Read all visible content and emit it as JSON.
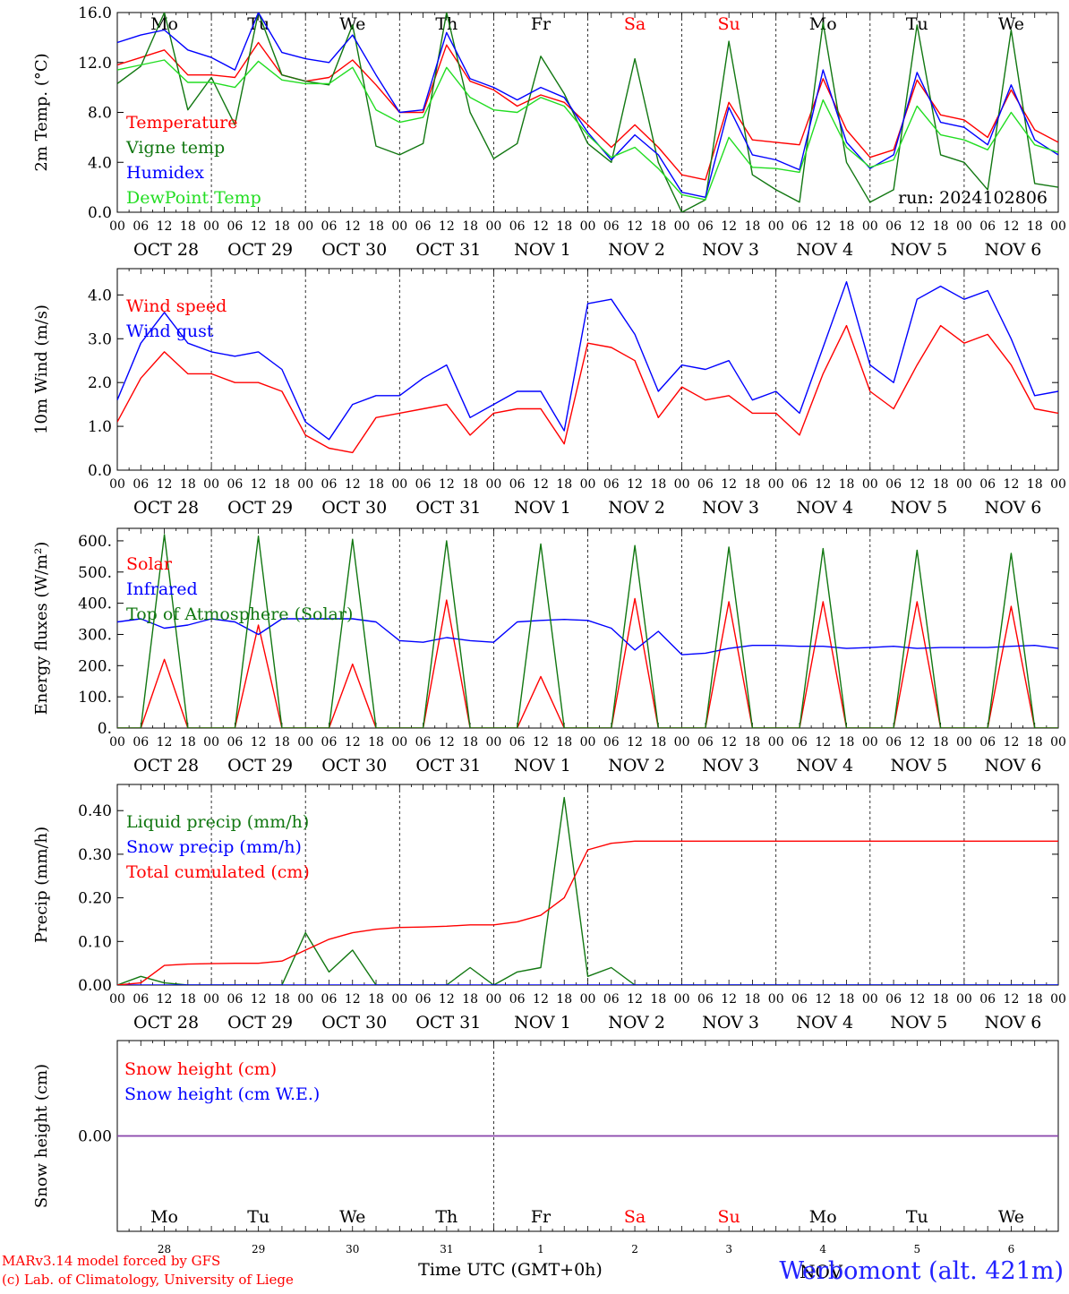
{
  "x_axis": {
    "hour_ticks": [
      "00",
      "06",
      "12",
      "18"
    ],
    "date_labels": [
      "OCT 28",
      "OCT 29",
      "OCT 30",
      "OCT 31",
      "NOV  1",
      "NOV  2",
      "NOV  3",
      "NOV  4",
      "NOV  5",
      "NOV  6"
    ],
    "weekdays": [
      "Mo",
      "Tu",
      "We",
      "Th",
      "Fr",
      "Sa",
      "Su",
      "Mo",
      "Tu",
      "We"
    ],
    "day_numbers": [
      "28",
      "29",
      "30",
      "31",
      "1",
      "2",
      "3",
      "4",
      "5",
      "6"
    ],
    "month_label": "NOV",
    "title": "Time UTC (GMT+0h)",
    "range_hours": [
      0,
      240
    ]
  },
  "colors": {
    "weekday": "#000000",
    "weekend": "#ff0000",
    "red": "#ff0000",
    "green": "#117711",
    "blue": "#0000ff",
    "lightgreen": "#22dd22",
    "purple": "#8844aa",
    "station": "#2222ff"
  },
  "footer": {
    "credit_line1": "MARv3.14 model forced by GFS",
    "credit_line2": "(c) Lab. of Climatology, University of Liege",
    "station": "Werbomont (alt. 421m)"
  },
  "chart_data": [
    {
      "type": "line",
      "ylabel": "2m Temp. (°C)",
      "ylim": [
        0,
        16
      ],
      "yticks": [
        "0.0",
        "4.0",
        "8.0",
        "12.0",
        "16.0"
      ],
      "run_label": "run: 2024102806",
      "x": [
        0,
        6,
        12,
        18,
        24,
        30,
        36,
        42,
        48,
        54,
        60,
        66,
        72,
        78,
        84,
        90,
        96,
        102,
        108,
        114,
        120,
        126,
        132,
        138,
        144,
        150,
        156,
        162,
        168,
        174,
        180,
        186,
        192,
        198,
        204,
        210,
        216,
        222,
        228,
        234,
        240
      ],
      "series": [
        {
          "name": "Temperature",
          "color": "red",
          "values": [
            11.8,
            12.4,
            13.0,
            11.0,
            11.0,
            10.8,
            13.6,
            11.0,
            10.5,
            10.8,
            12.2,
            10.2,
            8.0,
            8.0,
            13.4,
            10.5,
            9.8,
            8.5,
            9.4,
            8.8,
            7.0,
            5.2,
            7.0,
            5.2,
            3.0,
            2.6,
            8.8,
            5.8,
            5.6,
            5.4,
            10.7,
            6.6,
            4.4,
            5.0,
            10.6,
            7.8,
            7.4,
            6.0,
            9.8,
            6.6,
            5.6
          ]
        },
        {
          "name": "Vigne temp",
          "color": "green",
          "values": [
            10.3,
            11.7,
            16.0,
            8.2,
            10.8,
            7.0,
            16.0,
            11.0,
            10.5,
            10.2,
            15.0,
            5.3,
            4.6,
            5.5,
            16.0,
            8.0,
            4.3,
            5.5,
            12.5,
            9.5,
            5.5,
            4.0,
            12.3,
            4.0,
            0.0,
            1.0,
            13.7,
            3.0,
            1.8,
            0.8,
            15.2,
            4.0,
            0.8,
            1.8,
            15.0,
            4.6,
            4.0,
            1.8,
            14.6,
            2.3,
            2.0
          ]
        },
        {
          "name": "Humidex",
          "color": "blue",
          "values": [
            13.6,
            14.2,
            14.6,
            13.0,
            12.4,
            11.4,
            16.0,
            12.8,
            12.3,
            12.0,
            14.2,
            11.0,
            8.0,
            8.2,
            14.4,
            10.7,
            10.0,
            9.0,
            10.0,
            9.2,
            6.4,
            4.2,
            6.2,
            4.6,
            1.6,
            1.2,
            8.4,
            4.6,
            4.2,
            3.4,
            11.4,
            5.6,
            3.5,
            4.6,
            11.2,
            7.2,
            6.8,
            5.4,
            10.2,
            5.8,
            4.6
          ]
        },
        {
          "name": "DewPoint Temp",
          "color": "lightgreen",
          "values": [
            11.4,
            11.8,
            12.2,
            10.4,
            10.4,
            10.0,
            12.1,
            10.6,
            10.3,
            10.3,
            11.6,
            8.2,
            7.2,
            7.6,
            11.6,
            9.2,
            8.2,
            8.0,
            9.2,
            8.5,
            6.2,
            4.4,
            5.2,
            3.5,
            1.4,
            1.0,
            6.0,
            3.6,
            3.5,
            3.2,
            9.0,
            5.2,
            3.6,
            4.2,
            8.5,
            6.2,
            5.8,
            5.0,
            8.0,
            5.4,
            4.8
          ]
        }
      ]
    },
    {
      "type": "line",
      "ylabel": "10m Wind (m/s)",
      "ylim": [
        0,
        4.6
      ],
      "yticks": [
        "0.0",
        "1.0",
        "2.0",
        "3.0",
        "4.0"
      ],
      "x": [
        0,
        6,
        12,
        18,
        24,
        30,
        36,
        42,
        48,
        54,
        60,
        66,
        72,
        78,
        84,
        90,
        96,
        102,
        108,
        114,
        120,
        126,
        132,
        138,
        144,
        150,
        156,
        162,
        168,
        174,
        180,
        186,
        192,
        198,
        204,
        210,
        216,
        222,
        228,
        234,
        240
      ],
      "series": [
        {
          "name": "Wind speed",
          "color": "red",
          "values": [
            1.1,
            2.1,
            2.7,
            2.2,
            2.2,
            2.0,
            2.0,
            1.8,
            0.8,
            0.5,
            0.4,
            1.2,
            1.3,
            1.4,
            1.5,
            0.8,
            1.3,
            1.4,
            1.4,
            0.6,
            2.9,
            2.8,
            2.5,
            1.2,
            1.9,
            1.6,
            1.7,
            1.3,
            1.3,
            0.8,
            2.2,
            3.3,
            1.8,
            1.4,
            2.4,
            3.3,
            2.9,
            3.1,
            2.4,
            1.4,
            1.3
          ]
        },
        {
          "name": "Wind gust",
          "color": "blue",
          "values": [
            1.6,
            2.9,
            3.6,
            2.9,
            2.7,
            2.6,
            2.7,
            2.3,
            1.1,
            0.7,
            1.5,
            1.7,
            1.7,
            2.1,
            2.4,
            1.2,
            1.5,
            1.8,
            1.8,
            0.9,
            3.8,
            3.9,
            3.1,
            1.8,
            2.4,
            2.3,
            2.5,
            1.6,
            1.8,
            1.3,
            2.8,
            4.3,
            2.4,
            2.0,
            3.9,
            4.2,
            3.9,
            4.1,
            3.0,
            1.7,
            1.8
          ]
        }
      ]
    },
    {
      "type": "line",
      "ylabel": "Energy fluxes (W/m²)",
      "ylim": [
        0,
        640
      ],
      "yticks": [
        "0.",
        "100.",
        "200.",
        "300.",
        "400.",
        "500.",
        "600."
      ],
      "x": [
        0,
        6,
        12,
        18,
        24,
        30,
        36,
        42,
        48,
        54,
        60,
        66,
        72,
        78,
        84,
        90,
        96,
        102,
        108,
        114,
        120,
        126,
        132,
        138,
        144,
        150,
        156,
        162,
        168,
        174,
        180,
        186,
        192,
        198,
        204,
        210,
        216,
        222,
        228,
        234,
        240
      ],
      "series": [
        {
          "name": "Solar",
          "color": "red",
          "values": [
            0,
            0,
            220,
            0,
            0,
            0,
            330,
            0,
            0,
            0,
            205,
            0,
            0,
            0,
            410,
            0,
            0,
            0,
            165,
            0,
            0,
            0,
            415,
            0,
            0,
            0,
            405,
            0,
            0,
            0,
            405,
            0,
            0,
            0,
            405,
            0,
            0,
            0,
            390,
            0,
            0
          ]
        },
        {
          "name": "Infrared",
          "color": "blue",
          "values": [
            340,
            350,
            320,
            330,
            350,
            340,
            300,
            350,
            350,
            350,
            350,
            340,
            280,
            275,
            290,
            280,
            275,
            340,
            345,
            348,
            345,
            320,
            250,
            310,
            235,
            240,
            255,
            265,
            265,
            262,
            262,
            255,
            258,
            262,
            255,
            258,
            258,
            258,
            262,
            265,
            255
          ]
        },
        {
          "name": "Top of Atmosphere (Solar)",
          "color": "green",
          "values": [
            0,
            0,
            620,
            0,
            0,
            0,
            615,
            0,
            0,
            0,
            605,
            0,
            0,
            0,
            600,
            0,
            0,
            0,
            590,
            0,
            0,
            0,
            585,
            0,
            0,
            0,
            580,
            0,
            0,
            0,
            575,
            0,
            0,
            0,
            570,
            0,
            0,
            0,
            560,
            0,
            0
          ]
        }
      ]
    },
    {
      "type": "line",
      "ylabel": "Precip (mm/h)",
      "ylim": [
        0,
        0.46
      ],
      "yticks": [
        "0.00",
        "0.10",
        "0.20",
        "0.30",
        "0.40"
      ],
      "x": [
        0,
        6,
        12,
        18,
        24,
        30,
        36,
        42,
        48,
        54,
        60,
        66,
        72,
        78,
        84,
        90,
        96,
        102,
        108,
        114,
        120,
        126,
        132,
        138,
        144,
        150,
        156,
        162,
        168,
        174,
        180,
        186,
        192,
        198,
        204,
        210,
        216,
        222,
        228,
        234,
        240
      ],
      "series": [
        {
          "name": "Liquid precip (mm/h)",
          "color": "green",
          "values": [
            0,
            0.02,
            0.005,
            0,
            0,
            0,
            0,
            0,
            0.12,
            0.03,
            0.08,
            0,
            0,
            0,
            0,
            0.04,
            0,
            0.03,
            0.04,
            0.43,
            0.02,
            0.04,
            0,
            0,
            0,
            0,
            0,
            0,
            0,
            0,
            0,
            0,
            0,
            0,
            0,
            0,
            0,
            0,
            0,
            0,
            0
          ]
        },
        {
          "name": "Snow precip (mm/h)",
          "color": "blue",
          "values": [
            0,
            0,
            0,
            0,
            0,
            0,
            0,
            0,
            0,
            0,
            0,
            0,
            0,
            0,
            0,
            0,
            0,
            0,
            0,
            0,
            0,
            0,
            0,
            0,
            0,
            0,
            0,
            0,
            0,
            0,
            0,
            0,
            0,
            0,
            0,
            0,
            0,
            0,
            0,
            0,
            0
          ]
        },
        {
          "name": "Total cumulated (cm)",
          "color": "red",
          "values": [
            0,
            0.005,
            0.045,
            0.048,
            0.049,
            0.05,
            0.05,
            0.055,
            0.08,
            0.105,
            0.12,
            0.128,
            0.132,
            0.133,
            0.135,
            0.138,
            0.138,
            0.145,
            0.16,
            0.2,
            0.31,
            0.325,
            0.33,
            0.33,
            0.33,
            0.33,
            0.33,
            0.33,
            0.33,
            0.33,
            0.33,
            0.33,
            0.33,
            0.33,
            0.33,
            0.33,
            0.33,
            0.33,
            0.33,
            0.33,
            0.33
          ]
        }
      ]
    },
    {
      "type": "line",
      "ylabel": "Snow height (cm)",
      "ylim": [
        -1,
        1
      ],
      "yticks": [
        "0.00"
      ],
      "x": [
        0,
        240
      ],
      "series": [
        {
          "name": "Snow height (cm)",
          "color": "red",
          "values": [
            0,
            0
          ]
        },
        {
          "name": "Snow height (cm W.E.)",
          "color": "blue",
          "values": [
            0,
            0
          ]
        }
      ]
    }
  ]
}
